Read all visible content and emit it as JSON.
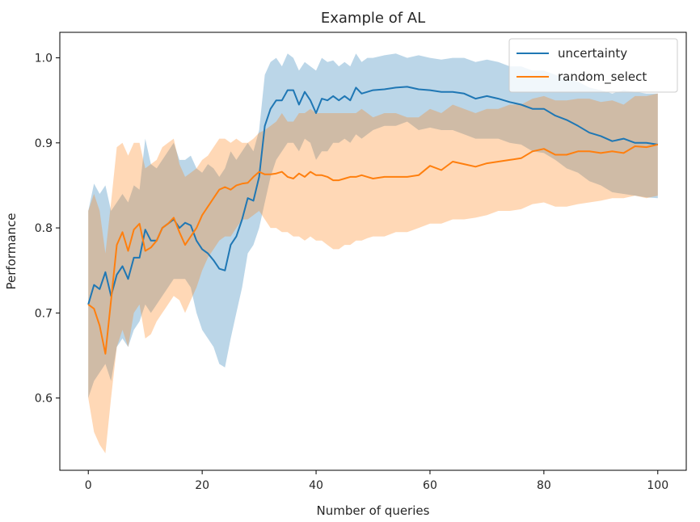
{
  "chart_data": {
    "type": "line",
    "title": "Example of AL",
    "xlabel": "Number of queries",
    "ylabel": "Performance",
    "xlim": [
      -5,
      105
    ],
    "ylim": [
      0.515,
      1.03
    ],
    "xticks": [
      0,
      20,
      40,
      60,
      80,
      100
    ],
    "yticks": [
      0.6,
      0.7,
      0.8,
      0.9,
      1.0
    ],
    "xtick_labels": [
      "0",
      "20",
      "40",
      "60",
      "80",
      "100"
    ],
    "ytick_labels": [
      "0.6",
      "0.7",
      "0.8",
      "0.9",
      "1.0"
    ],
    "grid": false,
    "legend_position": "top-right",
    "series": [
      {
        "name": "uncertainty",
        "color": "#1f77b4",
        "band_color": "#1f77b4",
        "band_opacity": 0.3,
        "x": [
          0,
          1,
          2,
          3,
          4,
          5,
          6,
          7,
          8,
          9,
          10,
          11,
          12,
          13,
          14,
          15,
          16,
          17,
          18,
          19,
          20,
          21,
          22,
          23,
          24,
          25,
          26,
          27,
          28,
          29,
          30,
          31,
          32,
          33,
          34,
          35,
          36,
          37,
          38,
          39,
          40,
          41,
          42,
          43,
          44,
          45,
          46,
          47,
          48,
          49,
          50,
          52,
          54,
          56,
          58,
          60,
          62,
          64,
          66,
          68,
          70,
          72,
          74,
          76,
          78,
          80,
          82,
          84,
          86,
          88,
          90,
          92,
          94,
          96,
          98,
          100
        ],
        "mean": [
          0.71,
          0.733,
          0.728,
          0.748,
          0.72,
          0.745,
          0.755,
          0.74,
          0.765,
          0.765,
          0.798,
          0.785,
          0.785,
          0.8,
          0.805,
          0.81,
          0.8,
          0.806,
          0.803,
          0.785,
          0.775,
          0.77,
          0.762,
          0.752,
          0.75,
          0.78,
          0.79,
          0.81,
          0.835,
          0.832,
          0.86,
          0.92,
          0.94,
          0.95,
          0.95,
          0.962,
          0.962,
          0.945,
          0.96,
          0.95,
          0.935,
          0.952,
          0.95,
          0.955,
          0.95,
          0.955,
          0.95,
          0.965,
          0.958,
          0.96,
          0.962,
          0.963,
          0.965,
          0.966,
          0.963,
          0.962,
          0.96,
          0.96,
          0.958,
          0.952,
          0.955,
          0.952,
          0.948,
          0.945,
          0.94,
          0.94,
          0.932,
          0.927,
          0.92,
          0.912,
          0.908,
          0.902,
          0.905,
          0.9,
          0.9,
          0.898
        ],
        "lower": [
          0.6,
          0.62,
          0.63,
          0.64,
          0.62,
          0.66,
          0.67,
          0.66,
          0.68,
          0.69,
          0.71,
          0.7,
          0.71,
          0.72,
          0.73,
          0.74,
          0.74,
          0.74,
          0.73,
          0.7,
          0.68,
          0.67,
          0.66,
          0.64,
          0.636,
          0.67,
          0.7,
          0.73,
          0.77,
          0.78,
          0.8,
          0.83,
          0.86,
          0.88,
          0.89,
          0.9,
          0.9,
          0.89,
          0.905,
          0.9,
          0.88,
          0.89,
          0.89,
          0.9,
          0.9,
          0.905,
          0.9,
          0.91,
          0.905,
          0.91,
          0.915,
          0.92,
          0.92,
          0.925,
          0.915,
          0.918,
          0.915,
          0.915,
          0.91,
          0.905,
          0.905,
          0.905,
          0.9,
          0.898,
          0.89,
          0.888,
          0.88,
          0.87,
          0.865,
          0.855,
          0.85,
          0.842,
          0.84,
          0.838,
          0.836,
          0.835
        ],
        "upper": [
          0.82,
          0.852,
          0.84,
          0.85,
          0.82,
          0.83,
          0.84,
          0.83,
          0.85,
          0.845,
          0.905,
          0.875,
          0.87,
          0.88,
          0.89,
          0.9,
          0.88,
          0.88,
          0.885,
          0.87,
          0.865,
          0.875,
          0.87,
          0.86,
          0.87,
          0.89,
          0.88,
          0.89,
          0.9,
          0.89,
          0.915,
          0.98,
          0.995,
          1.0,
          0.99,
          1.005,
          1.0,
          0.985,
          0.995,
          0.99,
          0.985,
          1.0,
          0.995,
          0.997,
          0.99,
          0.995,
          0.99,
          1.005,
          0.995,
          1.0,
          1.0,
          1.003,
          1.005,
          1.0,
          1.003,
          1.0,
          0.998,
          1.0,
          1.0,
          0.995,
          0.998,
          0.995,
          0.99,
          0.99,
          0.985,
          0.985,
          0.98,
          0.975,
          0.972,
          0.965,
          0.962,
          0.958,
          0.962,
          0.96,
          0.958,
          0.958
        ]
      },
      {
        "name": "random_select",
        "color": "#ff7f0e",
        "band_color": "#ff7f0e",
        "band_opacity": 0.3,
        "x": [
          0,
          1,
          2,
          3,
          4,
          5,
          6,
          7,
          8,
          9,
          10,
          11,
          12,
          13,
          14,
          15,
          16,
          17,
          18,
          19,
          20,
          21,
          22,
          23,
          24,
          25,
          26,
          27,
          28,
          29,
          30,
          31,
          32,
          33,
          34,
          35,
          36,
          37,
          38,
          39,
          40,
          41,
          42,
          43,
          44,
          45,
          46,
          47,
          48,
          49,
          50,
          52,
          54,
          56,
          58,
          60,
          62,
          64,
          66,
          68,
          70,
          72,
          74,
          76,
          78,
          80,
          82,
          84,
          86,
          88,
          90,
          92,
          94,
          96,
          98,
          100
        ],
        "mean": [
          0.71,
          0.705,
          0.685,
          0.652,
          0.715,
          0.78,
          0.795,
          0.773,
          0.798,
          0.805,
          0.773,
          0.777,
          0.785,
          0.8,
          0.805,
          0.812,
          0.795,
          0.78,
          0.79,
          0.8,
          0.815,
          0.825,
          0.835,
          0.845,
          0.848,
          0.845,
          0.85,
          0.852,
          0.853,
          0.86,
          0.866,
          0.863,
          0.863,
          0.864,
          0.866,
          0.86,
          0.858,
          0.864,
          0.86,
          0.866,
          0.862,
          0.862,
          0.86,
          0.856,
          0.856,
          0.858,
          0.86,
          0.86,
          0.862,
          0.86,
          0.858,
          0.86,
          0.86,
          0.86,
          0.862,
          0.873,
          0.868,
          0.878,
          0.875,
          0.872,
          0.876,
          0.878,
          0.88,
          0.882,
          0.89,
          0.893,
          0.886,
          0.886,
          0.89,
          0.89,
          0.888,
          0.89,
          0.888,
          0.896,
          0.895,
          0.898
        ],
        "lower": [
          0.6,
          0.56,
          0.545,
          0.535,
          0.6,
          0.66,
          0.68,
          0.66,
          0.7,
          0.71,
          0.67,
          0.675,
          0.69,
          0.7,
          0.71,
          0.72,
          0.715,
          0.7,
          0.715,
          0.73,
          0.75,
          0.765,
          0.775,
          0.785,
          0.79,
          0.79,
          0.8,
          0.81,
          0.81,
          0.815,
          0.82,
          0.81,
          0.8,
          0.8,
          0.795,
          0.795,
          0.79,
          0.79,
          0.785,
          0.79,
          0.785,
          0.785,
          0.78,
          0.775,
          0.775,
          0.78,
          0.78,
          0.785,
          0.785,
          0.788,
          0.79,
          0.79,
          0.795,
          0.795,
          0.8,
          0.805,
          0.805,
          0.81,
          0.81,
          0.812,
          0.815,
          0.82,
          0.82,
          0.822,
          0.828,
          0.83,
          0.825,
          0.825,
          0.828,
          0.83,
          0.832,
          0.835,
          0.835,
          0.838,
          0.835,
          0.838
        ],
        "upper": [
          0.82,
          0.84,
          0.82,
          0.77,
          0.83,
          0.895,
          0.9,
          0.885,
          0.9,
          0.9,
          0.87,
          0.875,
          0.88,
          0.895,
          0.9,
          0.905,
          0.875,
          0.86,
          0.865,
          0.87,
          0.88,
          0.885,
          0.895,
          0.905,
          0.905,
          0.9,
          0.905,
          0.9,
          0.9,
          0.905,
          0.912,
          0.915,
          0.92,
          0.925,
          0.935,
          0.925,
          0.925,
          0.935,
          0.935,
          0.94,
          0.935,
          0.935,
          0.935,
          0.935,
          0.935,
          0.935,
          0.935,
          0.935,
          0.94,
          0.935,
          0.93,
          0.935,
          0.935,
          0.93,
          0.93,
          0.94,
          0.935,
          0.945,
          0.94,
          0.935,
          0.94,
          0.94,
          0.945,
          0.945,
          0.952,
          0.955,
          0.95,
          0.95,
          0.952,
          0.952,
          0.948,
          0.95,
          0.945,
          0.955,
          0.955,
          0.958
        ]
      }
    ]
  }
}
